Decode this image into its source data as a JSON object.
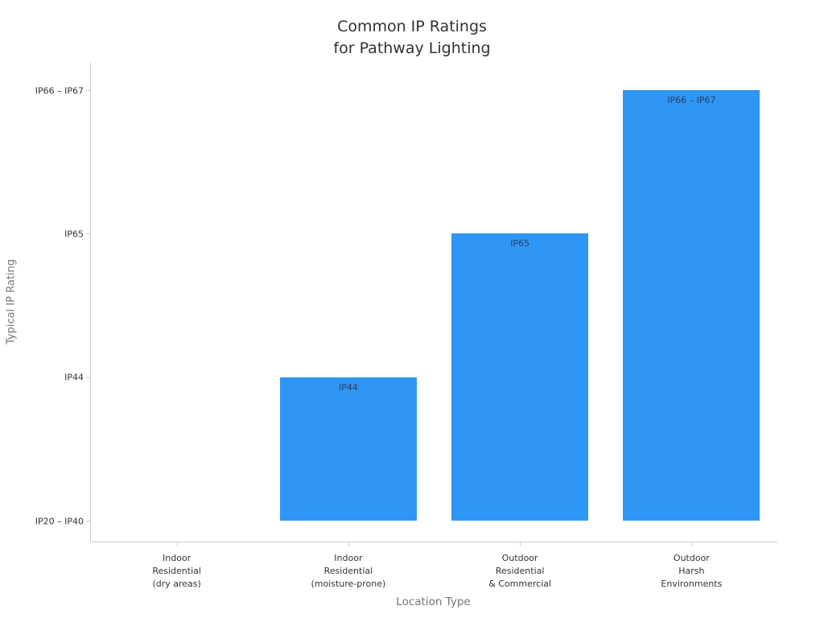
{
  "title": "Common IP Ratings\nfor Pathway Lighting",
  "chart_data": {
    "type": "bar",
    "title": "Common IP Ratings for Pathway Lighting",
    "xlabel": "Location Type",
    "ylabel": "Typical IP Rating",
    "categories": [
      "Indoor\nResidential\n(dry areas)",
      "Indoor\nResidential\n(moisture-prone)",
      "Outdoor\nResidential\n& Commercial",
      "Outdoor\nHarsh\nEnvironments"
    ],
    "values": [
      0,
      1,
      2,
      3
    ],
    "ytick_labels": [
      "IP20 – IP40",
      "IP44",
      "IP65",
      "IP66 – IP67"
    ],
    "bar_labels": [
      "",
      "IP44",
      "IP65",
      "IP66 – IP67"
    ],
    "ratings_per_category": [
      "IP20 – IP40",
      "IP44",
      "IP65",
      "IP66 – IP67"
    ],
    "ylim": [
      0,
      3
    ],
    "grid": false,
    "legend": false,
    "bar_color": "#2e96f5",
    "bar_label_color": "#2a3f5f",
    "axis_color": "#cccccc",
    "tick_label_color": "#333333",
    "axis_title_color": "#757575",
    "title_color": "#323232"
  }
}
